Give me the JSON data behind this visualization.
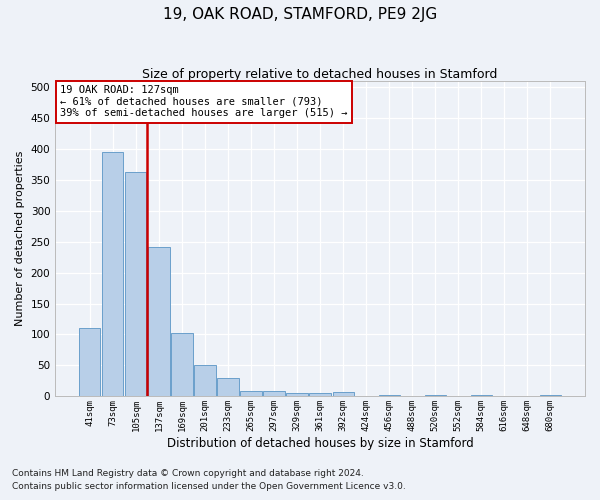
{
  "title": "19, OAK ROAD, STAMFORD, PE9 2JG",
  "subtitle": "Size of property relative to detached houses in Stamford",
  "xlabel": "Distribution of detached houses by size in Stamford",
  "ylabel": "Number of detached properties",
  "bin_labels": [
    "41sqm",
    "73sqm",
    "105sqm",
    "137sqm",
    "169sqm",
    "201sqm",
    "233sqm",
    "265sqm",
    "297sqm",
    "329sqm",
    "361sqm",
    "392sqm",
    "424sqm",
    "456sqm",
    "488sqm",
    "520sqm",
    "552sqm",
    "584sqm",
    "616sqm",
    "648sqm",
    "680sqm"
  ],
  "bar_heights": [
    110,
    395,
    362,
    242,
    103,
    50,
    29,
    9,
    8,
    5,
    5,
    7,
    0,
    3,
    0,
    2,
    0,
    3,
    0,
    0,
    3
  ],
  "bar_color": "#b8cfe8",
  "bar_edgecolor": "#6a9fcb",
  "bar_linewidth": 0.7,
  "vline_bin_edge": 3,
  "vline_color": "#cc0000",
  "annotation_line1": "19 OAK ROAD: 127sqm",
  "annotation_line2": "← 61% of detached houses are smaller (793)",
  "annotation_line3": "39% of semi-detached houses are larger (515) →",
  "annotation_box_edgecolor": "#cc0000",
  "ylim": [
    0,
    510
  ],
  "yticks": [
    0,
    50,
    100,
    150,
    200,
    250,
    300,
    350,
    400,
    450,
    500
  ],
  "footer_line1": "Contains HM Land Registry data © Crown copyright and database right 2024.",
  "footer_line2": "Contains public sector information licensed under the Open Government Licence v3.0.",
  "background_color": "#eef2f8",
  "grid_color": "#ffffff",
  "title_fontsize": 11,
  "subtitle_fontsize": 9,
  "ylabel_fontsize": 8,
  "xlabel_fontsize": 8.5,
  "ytick_fontsize": 7.5,
  "xtick_fontsize": 6.5,
  "annotation_fontsize": 7.5,
  "footer_fontsize": 6.5
}
